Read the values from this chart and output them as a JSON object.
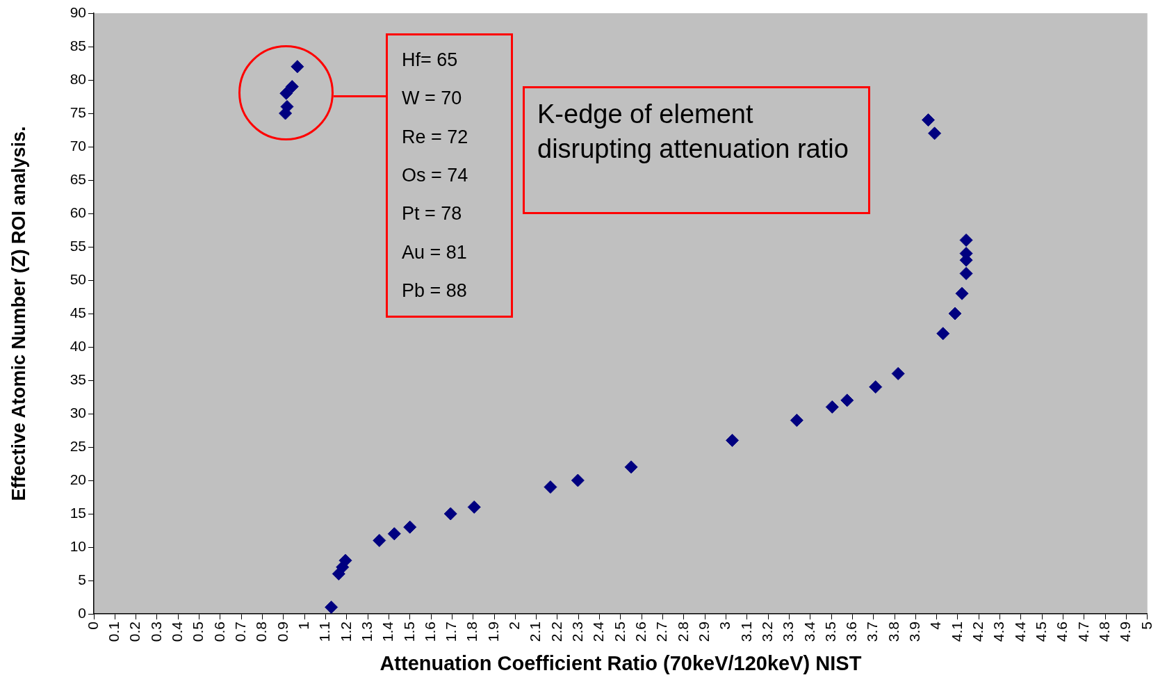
{
  "chart_data": {
    "type": "scatter",
    "xlabel": "Attenuation Coefficient Ratio (70keV/120keV) NIST",
    "ylabel": "Effective Atomic Number (Z) ROI analysis.",
    "x": [
      0.909,
      0.917,
      0.913,
      0.941,
      0.966,
      1.127,
      1.162,
      1.18,
      1.194,
      1.355,
      1.426,
      1.5,
      1.693,
      1.805,
      2.167,
      2.297,
      2.55,
      3.03,
      3.336,
      3.504,
      3.575,
      3.71,
      3.817,
      3.96,
      3.99,
      4.03,
      4.087,
      4.12,
      4.14,
      4.14,
      4.14,
      4.14
    ],
    "series": [
      {
        "color": "#000080",
        "values": [
          75,
          76,
          78,
          79,
          82,
          1,
          6,
          7,
          8,
          11,
          12,
          13,
          15,
          16,
          19,
          20,
          22,
          26,
          29,
          31,
          32,
          34,
          36,
          74,
          72,
          42,
          45,
          48,
          51,
          53,
          54,
          56
        ]
      }
    ],
    "marker": "diamond",
    "xlim": [
      0,
      5
    ],
    "xticks": [
      0,
      0.1,
      0.2,
      0.3,
      0.4,
      0.5,
      0.6,
      0.7,
      0.8,
      0.9,
      1,
      1.1,
      1.2,
      1.3,
      1.4,
      1.5,
      1.6,
      1.7,
      1.8,
      1.9,
      2,
      2.1,
      2.2,
      2.3,
      2.4,
      2.5,
      2.6,
      2.7,
      2.8,
      2.9,
      3,
      3.1,
      3.2,
      3.3,
      3.4,
      3.5,
      3.6,
      3.7,
      3.8,
      3.9,
      4,
      4.1,
      4.2,
      4.3,
      4.4,
      4.5,
      4.6,
      4.7,
      4.8,
      4.9,
      5
    ],
    "ylim": [
      0,
      90
    ],
    "yticks": [
      0,
      5,
      10,
      15,
      20,
      25,
      30,
      35,
      40,
      45,
      50,
      55,
      60,
      65,
      70,
      75,
      80,
      85,
      90
    ],
    "grid": false,
    "legend": false,
    "annotations": [
      "Hf= 65",
      "W = 70",
      "Re = 72",
      "Os = 74",
      "Pt = 78",
      "Au = 81",
      "Pb = 88",
      "K-edge of element disrupting attenuation ratio"
    ]
  }
}
